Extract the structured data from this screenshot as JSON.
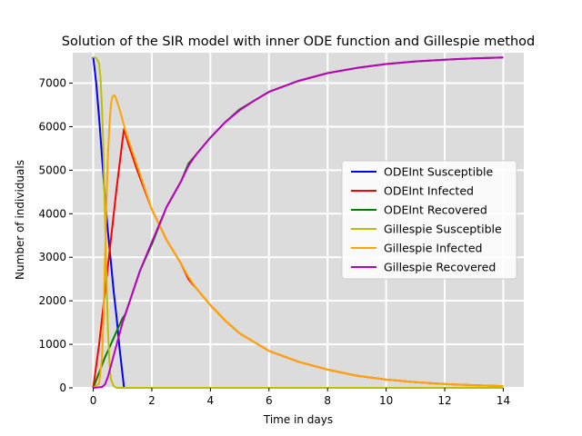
{
  "chart_data": {
    "type": "line",
    "title": "Solution of the SIR model with inner ODE function and Gillespie method",
    "xlabel": "Time in days",
    "ylabel": "Number of individuals",
    "xlim": [
      -0.7,
      14.7
    ],
    "ylim": [
      0,
      7700
    ],
    "xticks": [
      0,
      2,
      4,
      6,
      8,
      10,
      12,
      14
    ],
    "yticks": [
      0,
      1000,
      2000,
      3000,
      4000,
      5000,
      6000,
      7000
    ],
    "grid": true,
    "background": "#dcdcdc",
    "legend_position": "center-right",
    "series": [
      {
        "name": "ODEInt Susceptible",
        "color": "#0000ff",
        "x": [
          0,
          0.1,
          0.2,
          0.3,
          0.4,
          0.5,
          0.6,
          0.7,
          0.8,
          0.9,
          1.0,
          1.05
        ],
        "y": [
          7600,
          7000,
          6200,
          5300,
          4400,
          3600,
          2900,
          2200,
          1600,
          900,
          300,
          0
        ]
      },
      {
        "name": "ODEInt Infected",
        "color": "#ff0000",
        "x": [
          0,
          0.2,
          0.4,
          0.6,
          0.8,
          1.0,
          1.05,
          1.2,
          1.5,
          2,
          2.5,
          3,
          3.25,
          3.5,
          4,
          4.5,
          5,
          6,
          7,
          8,
          9,
          10,
          11,
          12,
          13,
          14
        ],
        "y": [
          0,
          1000,
          2200,
          3400,
          4600,
          5700,
          5950,
          5600,
          5000,
          4100,
          3400,
          2850,
          2500,
          2300,
          1900,
          1550,
          1250,
          850,
          600,
          420,
          280,
          190,
          130,
          90,
          60,
          40
        ]
      },
      {
        "name": "ODEInt Recovered",
        "color": "#008000",
        "x": [
          0,
          0.2,
          0.4,
          0.6,
          0.8,
          1.0,
          1.1,
          1.3,
          1.6,
          2,
          2.5,
          3,
          3.25,
          3.5,
          4,
          4.5,
          5,
          6,
          7,
          8,
          9,
          10,
          11,
          12,
          13,
          14
        ],
        "y": [
          0,
          350,
          700,
          1000,
          1300,
          1600,
          1700,
          2100,
          2700,
          3300,
          4150,
          4750,
          5150,
          5350,
          5750,
          6100,
          6400,
          6800,
          7050,
          7230,
          7350,
          7440,
          7500,
          7540,
          7570,
          7590
        ]
      },
      {
        "name": "Gillespie Susceptible",
        "color": "#bfbf00",
        "x": [
          0,
          0.1,
          0.2,
          0.25,
          0.3,
          0.35,
          0.4,
          0.45,
          0.5,
          0.55,
          0.6,
          0.7,
          0.8,
          1,
          2,
          4,
          6,
          8,
          10,
          12,
          14
        ],
        "y": [
          7600,
          7580,
          7450,
          7100,
          6400,
          5400,
          4000,
          2600,
          1400,
          600,
          200,
          40,
          0,
          0,
          0,
          0,
          0,
          0,
          0,
          0,
          0
        ]
      },
      {
        "name": "Gillespie Infected",
        "color": "#ffa500",
        "x": [
          0,
          0.2,
          0.3,
          0.35,
          0.4,
          0.45,
          0.5,
          0.55,
          0.6,
          0.65,
          0.7,
          0.75,
          0.8,
          0.9,
          1.0,
          1.1,
          1.3,
          1.6,
          2,
          2.5,
          3,
          3.25,
          3.5,
          4,
          4.5,
          5,
          6,
          7,
          8,
          9,
          10,
          11,
          12,
          13,
          14
        ],
        "y": [
          0,
          100,
          700,
          1600,
          2900,
          4200,
          5300,
          6000,
          6500,
          6680,
          6720,
          6700,
          6600,
          6400,
          6150,
          5900,
          5500,
          4900,
          4100,
          3400,
          2850,
          2550,
          2300,
          1900,
          1550,
          1250,
          850,
          600,
          420,
          280,
          190,
          130,
          90,
          60,
          40
        ]
      },
      {
        "name": "Gillespie Recovered",
        "color": "#bf00bf",
        "x": [
          0,
          0.3,
          0.4,
          0.5,
          0.6,
          0.8,
          1.0,
          1.3,
          1.6,
          2,
          2.5,
          3,
          3.25,
          3.5,
          4,
          4.5,
          5,
          5.5,
          6,
          7,
          8,
          9,
          10,
          11,
          12,
          13,
          14
        ],
        "y": [
          0,
          20,
          80,
          250,
          500,
          1000,
          1500,
          2100,
          2700,
          3350,
          4150,
          4750,
          5100,
          5350,
          5750,
          6100,
          6380,
          6600,
          6800,
          7050,
          7230,
          7350,
          7440,
          7500,
          7540,
          7570,
          7590
        ]
      }
    ]
  }
}
